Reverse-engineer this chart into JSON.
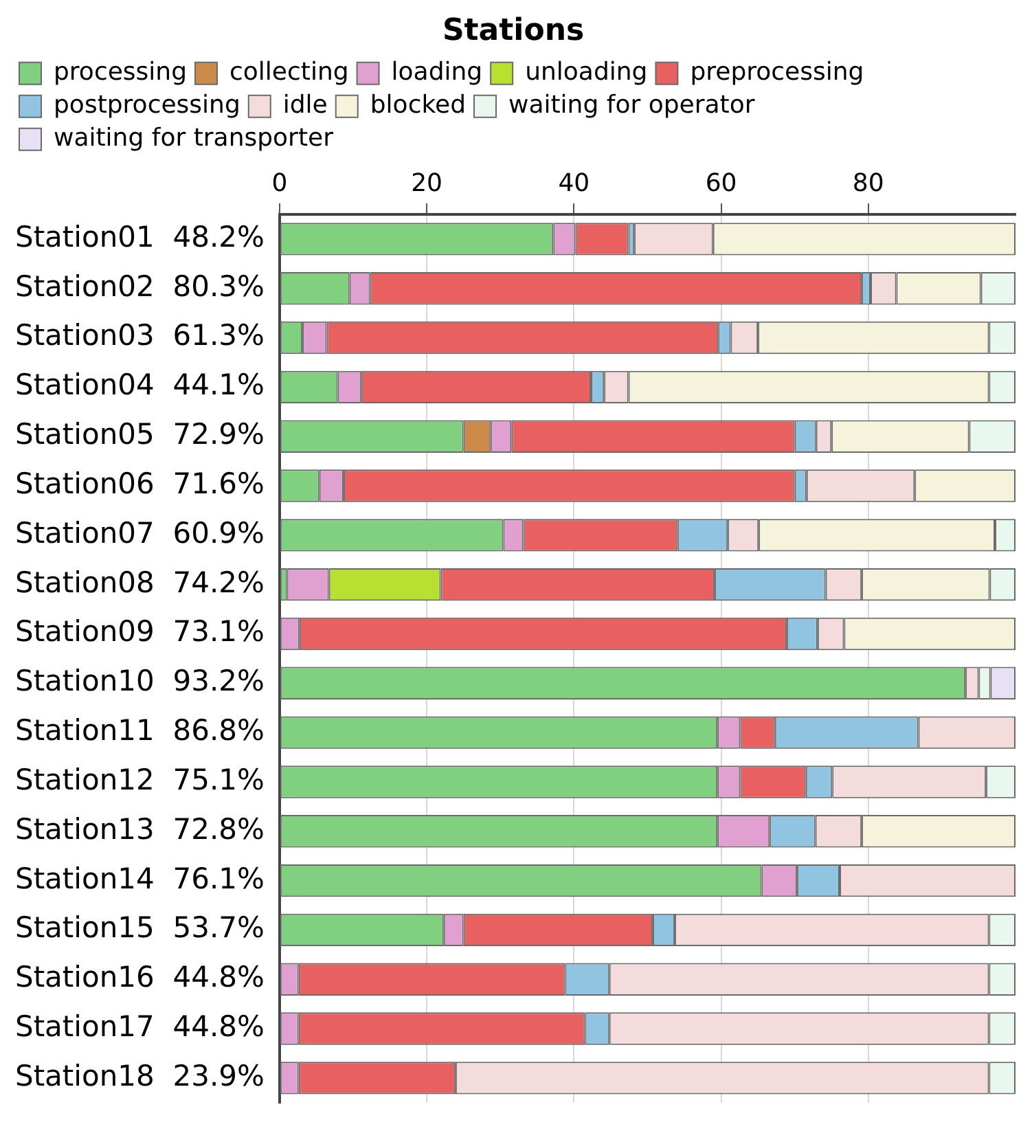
{
  "chart_data": {
    "type": "bar",
    "orientation": "horizontal",
    "stacked": true,
    "title": "Stations",
    "categories": [
      "Station01  48.2%",
      "Station02  80.3%",
      "Station03  61.3%",
      "Station04  44.1%",
      "Station05  72.9%",
      "Station06  71.6%",
      "Station07  60.9%",
      "Station08  74.2%",
      "Station09  73.1%",
      "Station10  93.2%",
      "Station11  86.8%",
      "Station12  75.1%",
      "Station13  72.8%",
      "Station14  76.1%",
      "Station15  53.7%",
      "Station16  44.8%",
      "Station17  44.8%",
      "Station18  23.9%"
    ],
    "series": [
      {
        "name": "processing",
        "color": "#80d080",
        "values": [
          37.2,
          9.5,
          3.1,
          7.9,
          25.0,
          5.4,
          30.4,
          1.0,
          null,
          93.2,
          59.5,
          59.5,
          59.5,
          65.5,
          22.3,
          null,
          null,
          null
        ]
      },
      {
        "name": "collecting",
        "color": "#cc8a4a",
        "values": [
          null,
          null,
          null,
          null,
          3.7,
          null,
          null,
          null,
          null,
          null,
          null,
          null,
          null,
          null,
          null,
          null,
          null,
          null
        ]
      },
      {
        "name": "loading",
        "color": "#e0a0d0",
        "values": [
          3.0,
          2.8,
          3.3,
          3.2,
          2.8,
          3.3,
          2.7,
          5.7,
          2.7,
          null,
          3.1,
          3.1,
          7.1,
          4.8,
          2.7,
          2.6,
          2.6,
          2.6
        ]
      },
      {
        "name": "unloading",
        "color": "#b8e030",
        "values": [
          null,
          null,
          null,
          null,
          null,
          null,
          null,
          15.2,
          null,
          null,
          null,
          null,
          null,
          null,
          null,
          null,
          null,
          null
        ]
      },
      {
        "name": "preprocessing",
        "color": "#e86060",
        "values": [
          7.2,
          66.8,
          53.2,
          31.2,
          38.5,
          61.3,
          21.0,
          37.2,
          66.2,
          null,
          4.7,
          8.9,
          null,
          null,
          25.7,
          36.2,
          38.9,
          21.3
        ]
      },
      {
        "name": "postprocessing",
        "color": "#90c4e0",
        "values": [
          0.8,
          1.2,
          1.7,
          1.8,
          2.9,
          1.6,
          6.8,
          15.1,
          4.2,
          null,
          19.5,
          3.6,
          6.2,
          5.8,
          3.0,
          6.0,
          3.3,
          null
        ]
      },
      {
        "name": "idle",
        "color": "#f5dcdc",
        "values": [
          10.7,
          3.5,
          3.7,
          3.3,
          2.1,
          14.7,
          4.2,
          4.9,
          3.6,
          1.8,
          13.2,
          20.9,
          6.3,
          23.9,
          42.7,
          51.6,
          51.6,
          72.5
        ]
      },
      {
        "name": "blocked",
        "color": "#f5f3dc",
        "values": [
          41.1,
          11.5,
          31.4,
          49.0,
          18.7,
          13.7,
          32.1,
          17.4,
          23.3,
          null,
          null,
          null,
          20.9,
          null,
          null,
          null,
          null,
          null
        ]
      },
      {
        "name": "waiting for operator",
        "color": "#e8f8ee",
        "values": [
          null,
          4.7,
          3.6,
          3.6,
          6.3,
          null,
          2.8,
          3.5,
          null,
          1.6,
          null,
          4.0,
          null,
          null,
          3.6,
          3.6,
          3.6,
          3.6
        ]
      },
      {
        "name": "waiting for transporter",
        "color": "#e8e0f5",
        "values": [
          null,
          null,
          null,
          null,
          null,
          null,
          null,
          null,
          null,
          3.4,
          null,
          null,
          null,
          null,
          null,
          null,
          null,
          null
        ]
      }
    ],
    "xlim": [
      0,
      100
    ],
    "xticks": [
      0,
      20,
      40,
      60,
      80
    ],
    "grid": "x",
    "legend": "top"
  }
}
